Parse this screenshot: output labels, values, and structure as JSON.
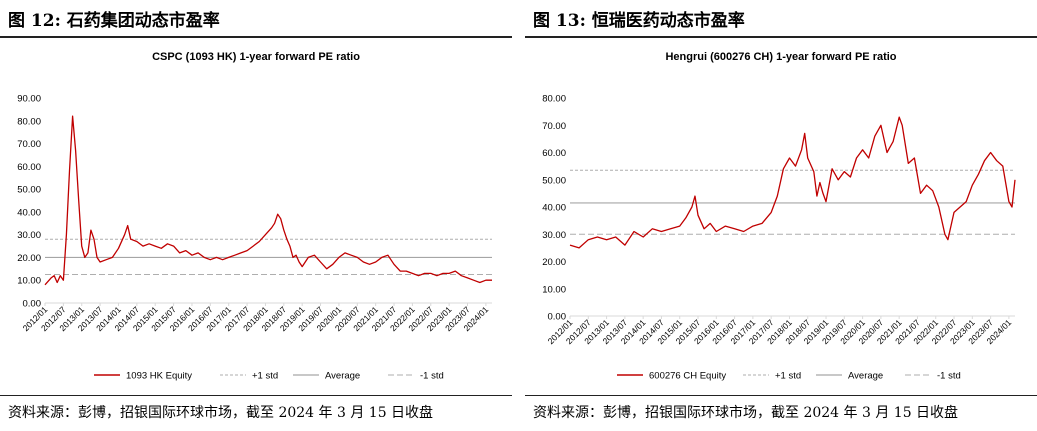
{
  "figures": [
    {
      "figure_title": "图 12: 石药集团动态市盈率",
      "source": "资料来源：彭博，招银国际环球市场，截至 2024 年 3 月 15 日收盘"
    },
    {
      "figure_title": "图 13: 恒瑞医药动态市盈率",
      "source": "资料来源：彭博，招银国际环球市场，截至 2024 年 3 月 15 日收盘"
    }
  ],
  "colors": {
    "series": "#c00000",
    "std_line": "#aeaeae",
    "average_line": "#a6a6a6",
    "axis": "#d9d9d9"
  },
  "chart_data": [
    {
      "type": "line",
      "title": "CSPC (1093 HK) 1-year forward PE ratio",
      "y_ticks": [
        "0.00",
        "10.00",
        "20.00",
        "30.00",
        "40.00",
        "50.00",
        "60.00",
        "70.00",
        "80.00",
        "90.00"
      ],
      "ylim": [
        0,
        90
      ],
      "x_ticks": [
        "2012/01",
        "2012/07",
        "2013/01",
        "2013/07",
        "2014/01",
        "2014/07",
        "2015/01",
        "2015/07",
        "2016/01",
        "2016/07",
        "2017/01",
        "2017/07",
        "2018/01",
        "2018/07",
        "2019/01",
        "2019/07",
        "2020/01",
        "2020/07",
        "2021/01",
        "2021/07",
        "2022/01",
        "2022/07",
        "2023/01",
        "2023/07",
        "2024/01"
      ],
      "xlim": [
        "2012/01",
        "2024/03"
      ],
      "reference_lines": {
        "plus_1_std": 28,
        "average": 20,
        "minus_1_std": 12.5
      },
      "legend": [
        "1093 HK Equity",
        "+1 std",
        "Average",
        "-1 std"
      ],
      "legend_position": "bottom",
      "series": [
        {
          "name": "1093 HK Equity",
          "points": [
            [
              "2012/01",
              8
            ],
            [
              "2012/03",
              11
            ],
            [
              "2012/04",
              12
            ],
            [
              "2012/05",
              9
            ],
            [
              "2012/06",
              12
            ],
            [
              "2012/07",
              10
            ],
            [
              "2012/08",
              30
            ],
            [
              "2012/09",
              58
            ],
            [
              "2012/10",
              82
            ],
            [
              "2012/11",
              67
            ],
            [
              "2012/12",
              45
            ],
            [
              "2013/01",
              25
            ],
            [
              "2013/02",
              20
            ],
            [
              "2013/03",
              22
            ],
            [
              "2013/04",
              32
            ],
            [
              "2013/05",
              28
            ],
            [
              "2013/06",
              20
            ],
            [
              "2013/07",
              18
            ],
            [
              "2013/09",
              19
            ],
            [
              "2013/11",
              20
            ],
            [
              "2014/01",
              24
            ],
            [
              "2014/03",
              30
            ],
            [
              "2014/04",
              34
            ],
            [
              "2014/05",
              28
            ],
            [
              "2014/07",
              27
            ],
            [
              "2014/09",
              25
            ],
            [
              "2014/11",
              26
            ],
            [
              "2015/01",
              25
            ],
            [
              "2015/03",
              24
            ],
            [
              "2015/05",
              26
            ],
            [
              "2015/07",
              25
            ],
            [
              "2015/09",
              22
            ],
            [
              "2015/11",
              23
            ],
            [
              "2016/01",
              21
            ],
            [
              "2016/03",
              22
            ],
            [
              "2016/05",
              20
            ],
            [
              "2016/07",
              19
            ],
            [
              "2016/09",
              20
            ],
            [
              "2016/11",
              19
            ],
            [
              "2017/01",
              20
            ],
            [
              "2017/03",
              21
            ],
            [
              "2017/05",
              22
            ],
            [
              "2017/07",
              23
            ],
            [
              "2017/09",
              25
            ],
            [
              "2017/11",
              27
            ],
            [
              "2018/01",
              30
            ],
            [
              "2018/03",
              33
            ],
            [
              "2018/04",
              35
            ],
            [
              "2018/05",
              39
            ],
            [
              "2018/06",
              37
            ],
            [
              "2018/07",
              32
            ],
            [
              "2018/08",
              28
            ],
            [
              "2018/09",
              25
            ],
            [
              "2018/10",
              20
            ],
            [
              "2018/11",
              21
            ],
            [
              "2018/12",
              18
            ],
            [
              "2019/01",
              16
            ],
            [
              "2019/03",
              20
            ],
            [
              "2019/05",
              21
            ],
            [
              "2019/07",
              18
            ],
            [
              "2019/09",
              15
            ],
            [
              "2019/11",
              17
            ],
            [
              "2020/01",
              20
            ],
            [
              "2020/03",
              22
            ],
            [
              "2020/05",
              21
            ],
            [
              "2020/07",
              20
            ],
            [
              "2020/09",
              18
            ],
            [
              "2020/11",
              17
            ],
            [
              "2021/01",
              18
            ],
            [
              "2021/03",
              20
            ],
            [
              "2021/05",
              21
            ],
            [
              "2021/07",
              17
            ],
            [
              "2021/09",
              14
            ],
            [
              "2021/11",
              14
            ],
            [
              "2022/01",
              13
            ],
            [
              "2022/03",
              12
            ],
            [
              "2022/05",
              13
            ],
            [
              "2022/07",
              13
            ],
            [
              "2022/09",
              12
            ],
            [
              "2022/11",
              13
            ],
            [
              "2023/01",
              13
            ],
            [
              "2023/03",
              14
            ],
            [
              "2023/05",
              12
            ],
            [
              "2023/07",
              11
            ],
            [
              "2023/09",
              10
            ],
            [
              "2023/11",
              9
            ],
            [
              "2024/01",
              10
            ],
            [
              "2024/03",
              10
            ]
          ]
        }
      ]
    },
    {
      "type": "line",
      "title": "Hengrui (600276 CH) 1-year forward PE ratio",
      "y_ticks": [
        "0.00",
        "10.00",
        "20.00",
        "30.00",
        "40.00",
        "50.00",
        "60.00",
        "70.00",
        "80.00"
      ],
      "ylim": [
        0,
        80
      ],
      "x_ticks": [
        "2012/01",
        "2012/07",
        "2013/01",
        "2013/07",
        "2014/01",
        "2014/07",
        "2015/01",
        "2015/07",
        "2016/01",
        "2016/07",
        "2017/01",
        "2017/07",
        "2018/01",
        "2018/07",
        "2019/01",
        "2019/07",
        "2020/01",
        "2020/07",
        "2021/01",
        "2021/07",
        "2022/01",
        "2022/07",
        "2023/01",
        "2023/07",
        "2024/01"
      ],
      "xlim": [
        "2012/01",
        "2024/03"
      ],
      "reference_lines": {
        "plus_1_std": 53.5,
        "average": 41.5,
        "minus_1_std": 30
      },
      "legend": [
        "600276 CH Equity",
        "+1 std",
        "Average",
        "-1 std"
      ],
      "legend_position": "bottom",
      "series": [
        {
          "name": "600276 CH Equity",
          "points": [
            [
              "2012/01",
              26
            ],
            [
              "2012/04",
              25
            ],
            [
              "2012/07",
              28
            ],
            [
              "2012/10",
              29
            ],
            [
              "2013/01",
              28
            ],
            [
              "2013/04",
              29
            ],
            [
              "2013/07",
              26
            ],
            [
              "2013/10",
              31
            ],
            [
              "2014/01",
              29
            ],
            [
              "2014/04",
              32
            ],
            [
              "2014/07",
              31
            ],
            [
              "2014/10",
              32
            ],
            [
              "2015/01",
              33
            ],
            [
              "2015/03",
              36
            ],
            [
              "2015/05",
              40
            ],
            [
              "2015/06",
              44
            ],
            [
              "2015/07",
              37
            ],
            [
              "2015/09",
              32
            ],
            [
              "2015/11",
              34
            ],
            [
              "2016/01",
              31
            ],
            [
              "2016/04",
              33
            ],
            [
              "2016/07",
              32
            ],
            [
              "2016/10",
              31
            ],
            [
              "2017/01",
              33
            ],
            [
              "2017/04",
              34
            ],
            [
              "2017/07",
              38
            ],
            [
              "2017/09",
              44
            ],
            [
              "2017/11",
              54
            ],
            [
              "2018/01",
              58
            ],
            [
              "2018/03",
              55
            ],
            [
              "2018/05",
              61
            ],
            [
              "2018/06",
              67
            ],
            [
              "2018/07",
              58
            ],
            [
              "2018/09",
              53
            ],
            [
              "2018/10",
              44
            ],
            [
              "2018/11",
              49
            ],
            [
              "2018/12",
              45
            ],
            [
              "2019/01",
              42
            ],
            [
              "2019/03",
              54
            ],
            [
              "2019/05",
              50
            ],
            [
              "2019/07",
              53
            ],
            [
              "2019/09",
              51
            ],
            [
              "2019/11",
              58
            ],
            [
              "2020/01",
              61
            ],
            [
              "2020/03",
              58
            ],
            [
              "2020/05",
              66
            ],
            [
              "2020/07",
              70
            ],
            [
              "2020/09",
              60
            ],
            [
              "2020/11",
              64
            ],
            [
              "2021/01",
              73
            ],
            [
              "2021/02",
              70
            ],
            [
              "2021/04",
              56
            ],
            [
              "2021/06",
              58
            ],
            [
              "2021/08",
              45
            ],
            [
              "2021/10",
              48
            ],
            [
              "2021/12",
              46
            ],
            [
              "2022/02",
              40
            ],
            [
              "2022/04",
              30
            ],
            [
              "2022/05",
              28
            ],
            [
              "2022/07",
              38
            ],
            [
              "2022/09",
              40
            ],
            [
              "2022/11",
              42
            ],
            [
              "2023/01",
              48
            ],
            [
              "2023/03",
              52
            ],
            [
              "2023/05",
              57
            ],
            [
              "2023/07",
              60
            ],
            [
              "2023/09",
              57
            ],
            [
              "2023/11",
              55
            ],
            [
              "2024/01",
              42
            ],
            [
              "2024/02",
              40
            ],
            [
              "2024/03",
              50
            ]
          ]
        }
      ]
    }
  ]
}
